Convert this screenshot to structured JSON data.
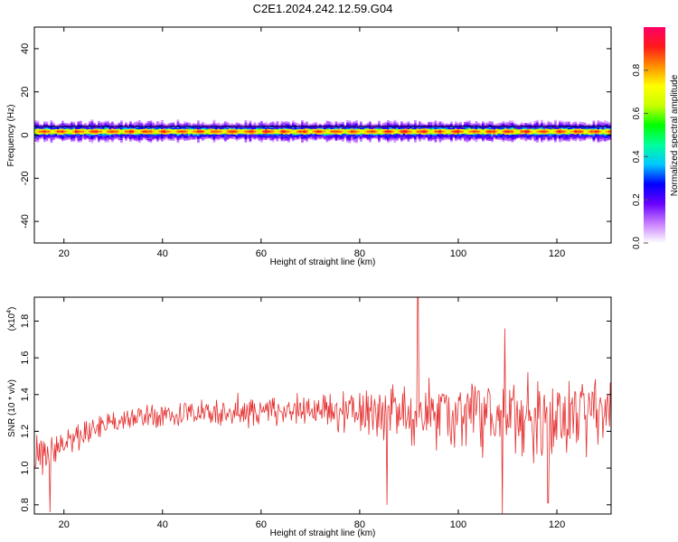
{
  "title": "C2E1.2024.242.12.59.G04",
  "chart_data": [
    {
      "type": "heatmap",
      "xlabel": "Height of straight line (km)",
      "ylabel": "Frequency (Hz)",
      "xlim": [
        14,
        131
      ],
      "ylim": [
        -50,
        50
      ],
      "x_ticks": [
        20,
        40,
        60,
        80,
        100,
        120
      ],
      "y_ticks": [
        -40,
        -20,
        0,
        20,
        40
      ],
      "band": {
        "center_hz": 1.5,
        "core_halfwidth_hz": 1.2,
        "outer_halfwidth_hz": 5
      },
      "colorbar": {
        "label": "Normalized spectral amplitude",
        "range": [
          0,
          1
        ],
        "ticks": [
          0.0,
          0.2,
          0.4,
          0.6,
          0.8
        ],
        "tick_labels": [
          "0.0",
          "0.2",
          "0.4",
          "0.6",
          "0.8"
        ],
        "colors": [
          "#ffffff",
          "#c77dff",
          "#6a00ff",
          "#0000ff",
          "#00c8ff",
          "#00ff9c",
          "#00ff00",
          "#c8ff00",
          "#ffff00",
          "#ff9000",
          "#ff1a1a",
          "#ff0066"
        ]
      }
    },
    {
      "type": "line",
      "xlabel": "Height of straight line (km)",
      "ylabel": "SNR (10 * v/v)",
      "y_scale_label": "(x10",
      "y_scale_exp": "4",
      "y_scale_close": ")",
      "xlim": [
        14,
        131
      ],
      "ylim": [
        0.75,
        1.93
      ],
      "x_ticks": [
        20,
        40,
        60,
        80,
        100,
        120
      ],
      "y_ticks": [
        0.8,
        1.0,
        1.2,
        1.4,
        1.6,
        1.8
      ],
      "y_tick_labels": [
        "0.8",
        "1.0",
        "1.2",
        "1.4",
        "1.6",
        "1.8"
      ],
      "color": "#e53030",
      "trend": [
        [
          14,
          1.05
        ],
        [
          20,
          1.12
        ],
        [
          30,
          1.26
        ],
        [
          40,
          1.29
        ],
        [
          50,
          1.3
        ],
        [
          60,
          1.31
        ],
        [
          70,
          1.31
        ],
        [
          80,
          1.3
        ],
        [
          90,
          1.3
        ],
        [
          100,
          1.3
        ],
        [
          110,
          1.29
        ],
        [
          120,
          1.27
        ],
        [
          131,
          1.32
        ]
      ],
      "noise_amplitude": [
        [
          14,
          0.12
        ],
        [
          20,
          0.08
        ],
        [
          30,
          0.07
        ],
        [
          50,
          0.08
        ],
        [
          70,
          0.09
        ],
        [
          78,
          0.14
        ],
        [
          90,
          0.19
        ],
        [
          110,
          0.22
        ],
        [
          131,
          0.22
        ]
      ],
      "samples": 700,
      "spikes": [
        [
          91.8,
          1.93
        ],
        [
          108.9,
          0.75
        ],
        [
          109.4,
          1.76
        ],
        [
          17.2,
          0.76
        ],
        [
          85.5,
          0.8
        ],
        [
          118.2,
          0.81
        ]
      ]
    }
  ]
}
